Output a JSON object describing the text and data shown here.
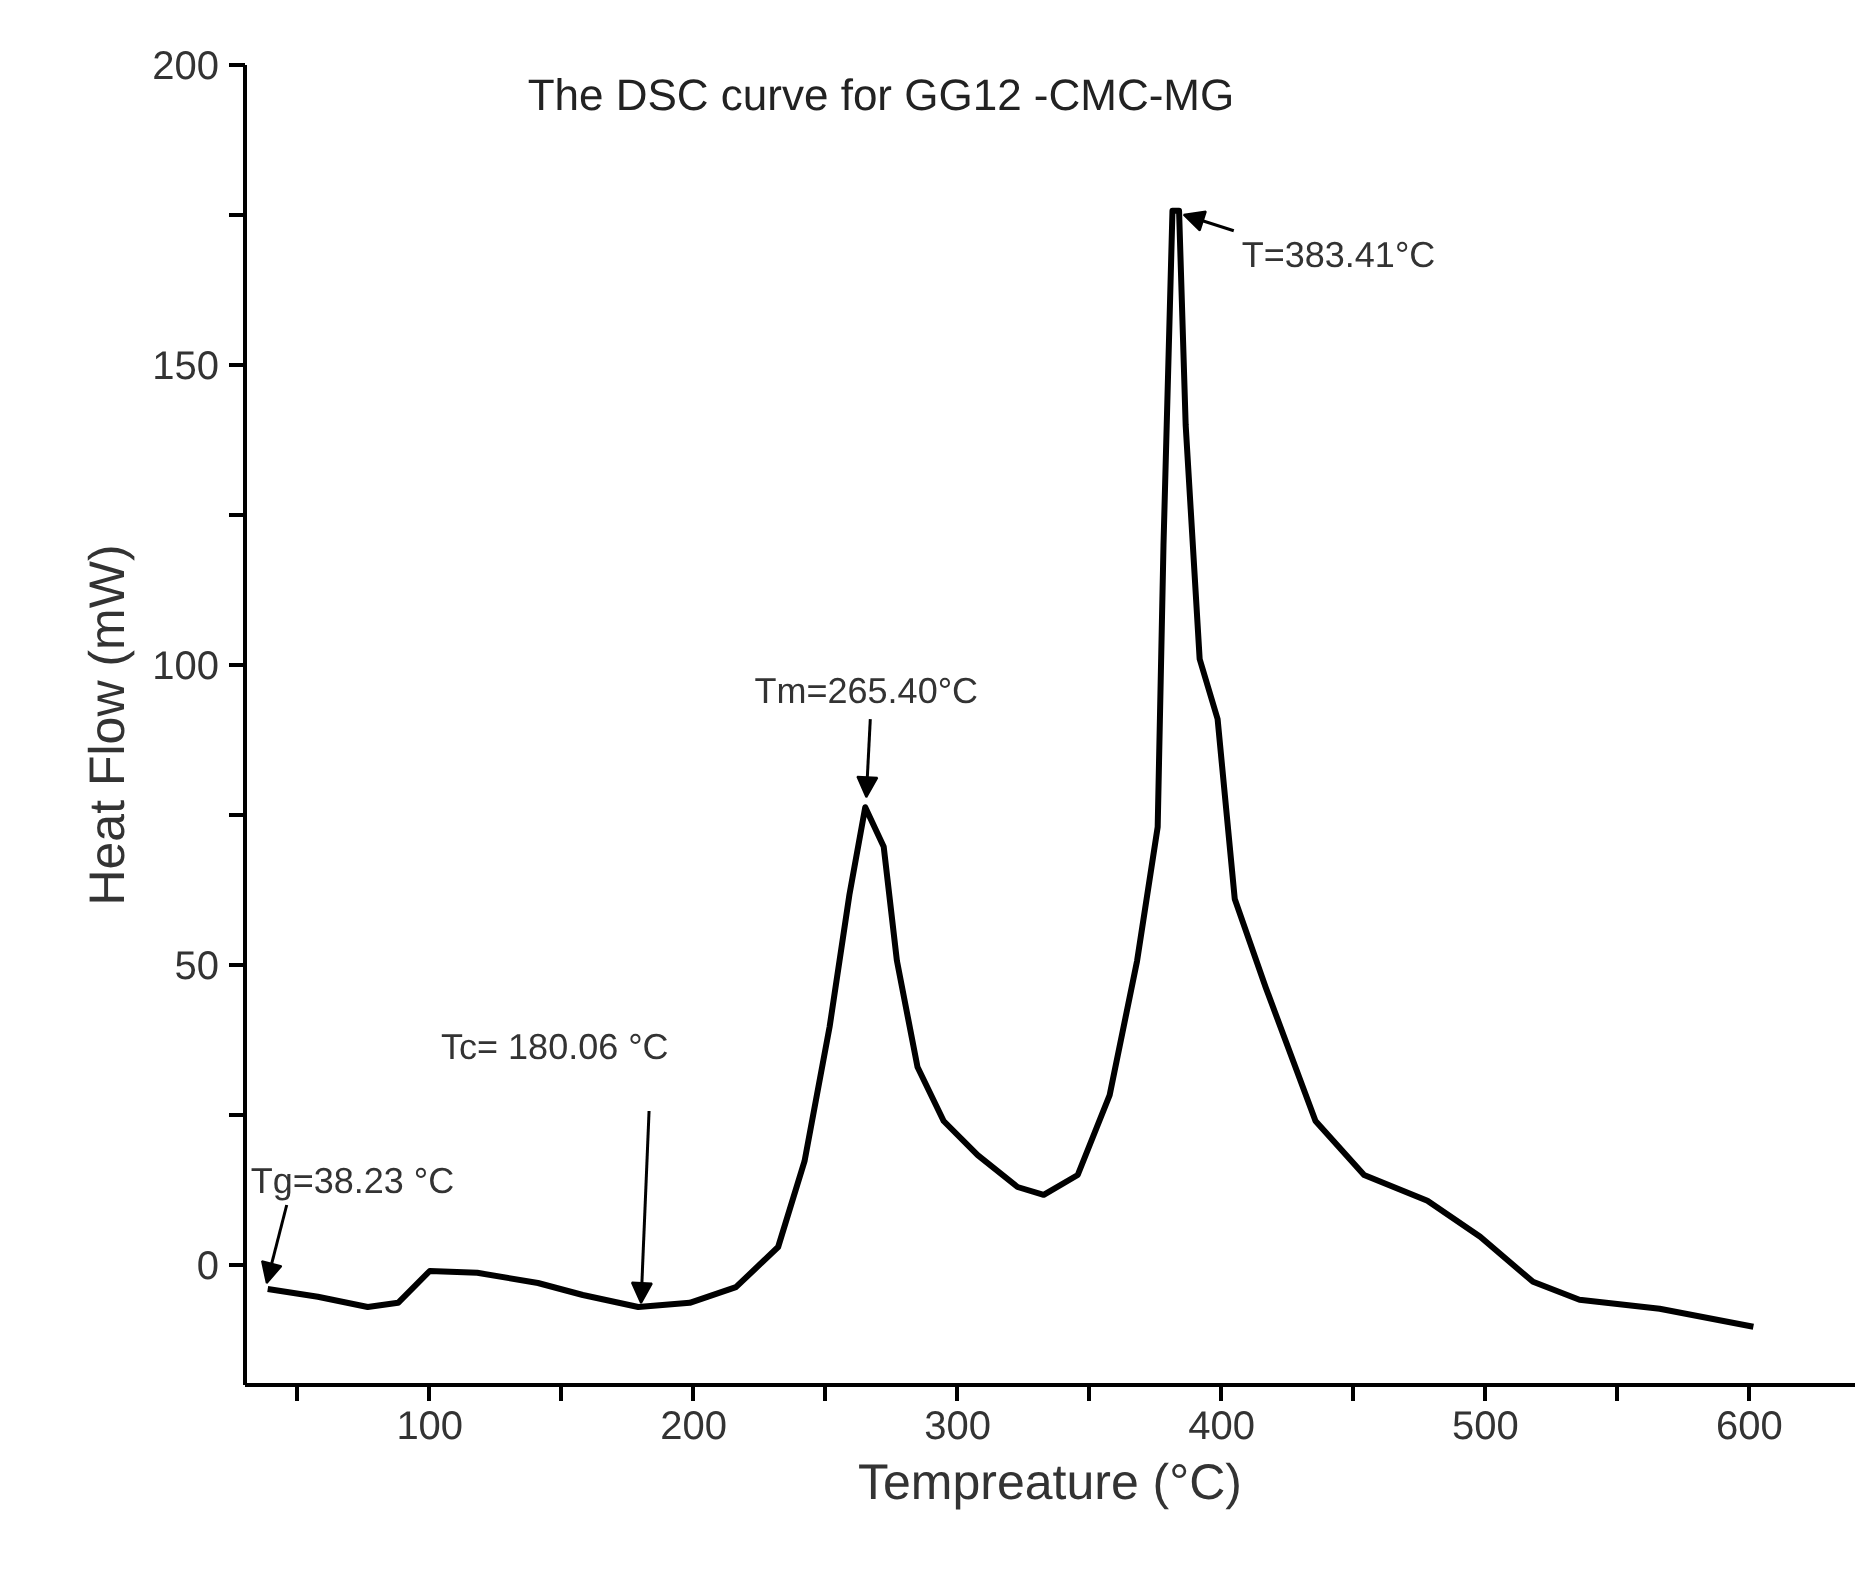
{
  "chart_data": {
    "type": "line",
    "title": "The DSC curve for GG12 -CMC-MG",
    "xlabel": "Tempreature (°C)",
    "ylabel": "Heat Flow (mW)",
    "x": [
      38.6,
      57.6,
      76.5,
      88,
      100,
      118,
      141,
      158,
      179,
      198.5,
      216,
      232,
      242,
      251.5,
      259,
      265,
      272,
      277,
      284.8,
      294.7,
      307.6,
      322.7,
      332.6,
      345.5,
      357.6,
      368,
      375.8,
      378,
      381.4,
      383.9,
      386.4,
      391.7,
      398.5,
      405,
      416.7,
      435.6,
      454,
      478,
      498,
      518,
      535.6,
      566,
      601.5
    ],
    "series": [
      {
        "color": "#000000",
        "values": [
          -4,
          -5.3,
          -7,
          -6.3,
          -1,
          -1.3,
          -3,
          -5,
          -7,
          -6.3,
          -3.7,
          3,
          17.3,
          39.7,
          61.7,
          76.3,
          69.7,
          50.7,
          33,
          24,
          18.3,
          13,
          11.7,
          15,
          28.3,
          50.7,
          73,
          120,
          175.7,
          175.7,
          140,
          101,
          91,
          61,
          46.3,
          24,
          15,
          10.7,
          4.7,
          -2.8,
          -5.8,
          -7.3,
          -10.3
        ]
      }
    ],
    "xlim": [
      30,
      640
    ],
    "ylim": [
      -20,
      200
    ],
    "xticks": [
      {
        "value": 50,
        "label": null
      },
      100,
      {
        "value": 150,
        "label": null
      },
      200,
      {
        "value": 250,
        "label": null
      },
      300,
      {
        "value": 350,
        "label": null
      },
      400,
      {
        "value": 450,
        "label": null
      },
      500,
      {
        "value": 550,
        "label": null
      },
      600
    ],
    "yticks": [
      0,
      {
        "value": 25,
        "label": null
      },
      50,
      {
        "value": 75,
        "label": null
      },
      100,
      {
        "value": 125,
        "label": null
      },
      150,
      {
        "value": 175,
        "label": null
      },
      200
    ],
    "annotations": [
      {
        "text": "Tg=38.23 °C",
        "x": 38.23,
        "y": -4
      },
      {
        "text": "Tc= 180.06 °C",
        "x": 180.06,
        "y": -7
      },
      {
        "text": "Tm=265.40°C",
        "x": 265.4,
        "y": 76.3
      },
      {
        "text": "T=383.41°C",
        "x": 383.41,
        "y": 175.7
      }
    ]
  }
}
